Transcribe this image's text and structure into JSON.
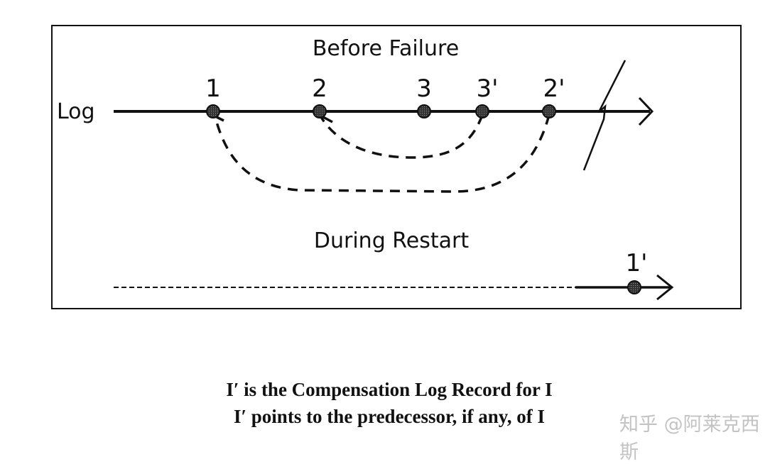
{
  "diagram": {
    "before_title": "Before Failure",
    "during_title": "During Restart",
    "axis_label": "Log",
    "before_points": [
      "1",
      "2",
      "3",
      "3'",
      "2'"
    ],
    "restart_point": "1'"
  },
  "caption": {
    "line1": "I′ is the Compensation Log Record for I",
    "line2": "I′ points to the predecessor, if any, of I"
  },
  "watermark": "知乎 @阿莱克西斯"
}
